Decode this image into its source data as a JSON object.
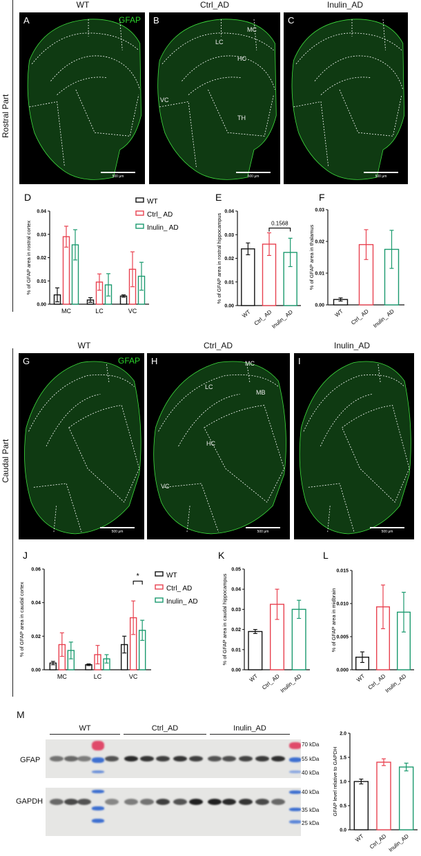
{
  "colors": {
    "WT": "#111111",
    "Ctrl_AD": "#e8414f",
    "Inulin_AD": "#1a9a6e",
    "gfap_stain": "#2bd42b"
  },
  "rostral": {
    "part_label": "Rostral Part",
    "headers": [
      "WT",
      "Ctrl_AD",
      "Inulin_AD"
    ],
    "panels": [
      {
        "letter": "A",
        "stain": "GFAP",
        "scale": "500 μm",
        "regions": []
      },
      {
        "letter": "B",
        "scale": "500 μm",
        "regions": [
          "MC",
          "LC",
          "HC",
          "VC",
          "TH"
        ]
      },
      {
        "letter": "C",
        "scale": "500 μm",
        "regions": []
      }
    ]
  },
  "caudal": {
    "part_label": "Caudal Part",
    "headers": [
      "WT",
      "Ctrl_AD",
      "Inulin_AD"
    ],
    "panels": [
      {
        "letter": "G",
        "stain": "GFAP",
        "scale": "500 μm",
        "regions": []
      },
      {
        "letter": "H",
        "scale": "500 μm",
        "regions": [
          "MC",
          "LC",
          "MB",
          "HC",
          "VC"
        ]
      },
      {
        "letter": "I",
        "scale": "500 μm",
        "regions": []
      }
    ]
  },
  "legend": [
    "WT",
    "Ctrl_ AD",
    "Inulin_ AD"
  ],
  "blot": {
    "letter": "M",
    "groups": [
      "WT",
      "Ctrl_AD",
      "Inulin_AD"
    ],
    "rows": [
      "GFAP",
      "GAPDH"
    ],
    "markers_top": [
      "70 kDa",
      "55 kDa",
      "40 kDa"
    ],
    "markers_bottom": [
      "40 kDa",
      "35 kDa",
      "25 kDa"
    ]
  },
  "chart_data": [
    {
      "letter": "D",
      "type": "bar",
      "categories": [
        "MC",
        "LC",
        "VC"
      ],
      "series": [
        {
          "name": "WT",
          "values": [
            0.004,
            0.0018,
            0.0035
          ],
          "sd": [
            0.003,
            0.001,
            0.0005
          ]
        },
        {
          "name": "Ctrl_ AD",
          "values": [
            0.029,
            0.0095,
            0.015
          ],
          "sd": [
            0.0045,
            0.0035,
            0.0075
          ]
        },
        {
          "name": "Inulin_ AD",
          "values": [
            0.0255,
            0.0083,
            0.012
          ],
          "sd": [
            0.0065,
            0.0048,
            0.006
          ]
        }
      ],
      "ylabel": "% of GFAP area in rostral cortex",
      "ylim": [
        0,
        0.04
      ],
      "yticks": [
        "0.00",
        "0.01",
        "0.02",
        "0.03",
        "0.04"
      ],
      "legend": "top-right"
    },
    {
      "letter": "E",
      "type": "bar",
      "categories": [
        "WT",
        "Ctrl_ AD",
        "Inulin_ AD"
      ],
      "values": [
        0.024,
        0.026,
        0.0225
      ],
      "sd": [
        0.0025,
        0.0048,
        0.006
      ],
      "ylabel": "% of GFAP area in rostral hippocampus",
      "ylim": [
        0,
        0.04
      ],
      "yticks": [
        "0.00",
        "0.01",
        "0.02",
        "0.03",
        "0.04"
      ],
      "annotation": {
        "text": "0.1568",
        "between": [
          1,
          2
        ]
      }
    },
    {
      "letter": "F",
      "type": "bar",
      "categories": [
        "WT",
        "Ctrl_ AD",
        "Inulin_ AD"
      ],
      "values": [
        0.0017,
        0.019,
        0.0175
      ],
      "sd": [
        0.0005,
        0.0047,
        0.006
      ],
      "ylabel": "% of GFAP area in thalamus",
      "ylim": [
        0,
        0.03
      ],
      "yticks": [
        "0.00",
        "0.01",
        "0.02",
        "0.03"
      ]
    },
    {
      "letter": "J",
      "type": "bar",
      "categories": [
        "MC",
        "LC",
        "VC"
      ],
      "series": [
        {
          "name": "WT",
          "values": [
            0.004,
            0.003,
            0.015
          ],
          "sd": [
            0.001,
            0.0005,
            0.005
          ]
        },
        {
          "name": "Ctrl_ AD",
          "values": [
            0.015,
            0.009,
            0.031
          ],
          "sd": [
            0.007,
            0.0055,
            0.01
          ]
        },
        {
          "name": "Inulin_ AD",
          "values": [
            0.0115,
            0.0065,
            0.0235
          ],
          "sd": [
            0.005,
            0.0025,
            0.006
          ]
        }
      ],
      "ylabel": "% of GFAP area in caudal cortex",
      "ylim": [
        0,
        0.06
      ],
      "yticks": [
        "0.00",
        "0.02",
        "0.04",
        "0.06"
      ],
      "legend": "top-right",
      "annotation": {
        "text": "*",
        "category": "VC",
        "between": [
          1,
          2
        ]
      }
    },
    {
      "letter": "K",
      "type": "bar",
      "categories": [
        "WT",
        "Ctrl_ AD",
        "Inulin_ AD"
      ],
      "values": [
        0.019,
        0.0325,
        0.03
      ],
      "sd": [
        0.001,
        0.0075,
        0.0045
      ],
      "ylabel": "% of GFAP area in caudal hippocampus",
      "ylim": [
        0,
        0.05
      ],
      "yticks": [
        "0.00",
        "0.01",
        "0.02",
        "0.03",
        "0.04",
        "0.05"
      ]
    },
    {
      "letter": "L",
      "type": "bar",
      "categories": [
        "WT",
        "Ctrl_ AD",
        "Inulin_ AD"
      ],
      "values": [
        0.0019,
        0.0095,
        0.0087
      ],
      "sd": [
        0.0008,
        0.0033,
        0.003
      ],
      "ylabel": "% of GFAP area in midbrain",
      "ylim": [
        0,
        0.015
      ],
      "yticks": [
        "0.000",
        "0.005",
        "0.010",
        "0.015"
      ]
    },
    {
      "letter": "",
      "type": "bar",
      "categories": [
        "WT",
        "Ctrl_AD",
        "Inulin_AD"
      ],
      "values": [
        1.0,
        1.4,
        1.3
      ],
      "sd": [
        0.05,
        0.07,
        0.08
      ],
      "ylabel": "GFAP level relative to GAPDH",
      "ylim": [
        0,
        2.0
      ],
      "yticks": [
        "0.0",
        "0.5",
        "1.0",
        "1.5",
        "2.0"
      ]
    }
  ]
}
